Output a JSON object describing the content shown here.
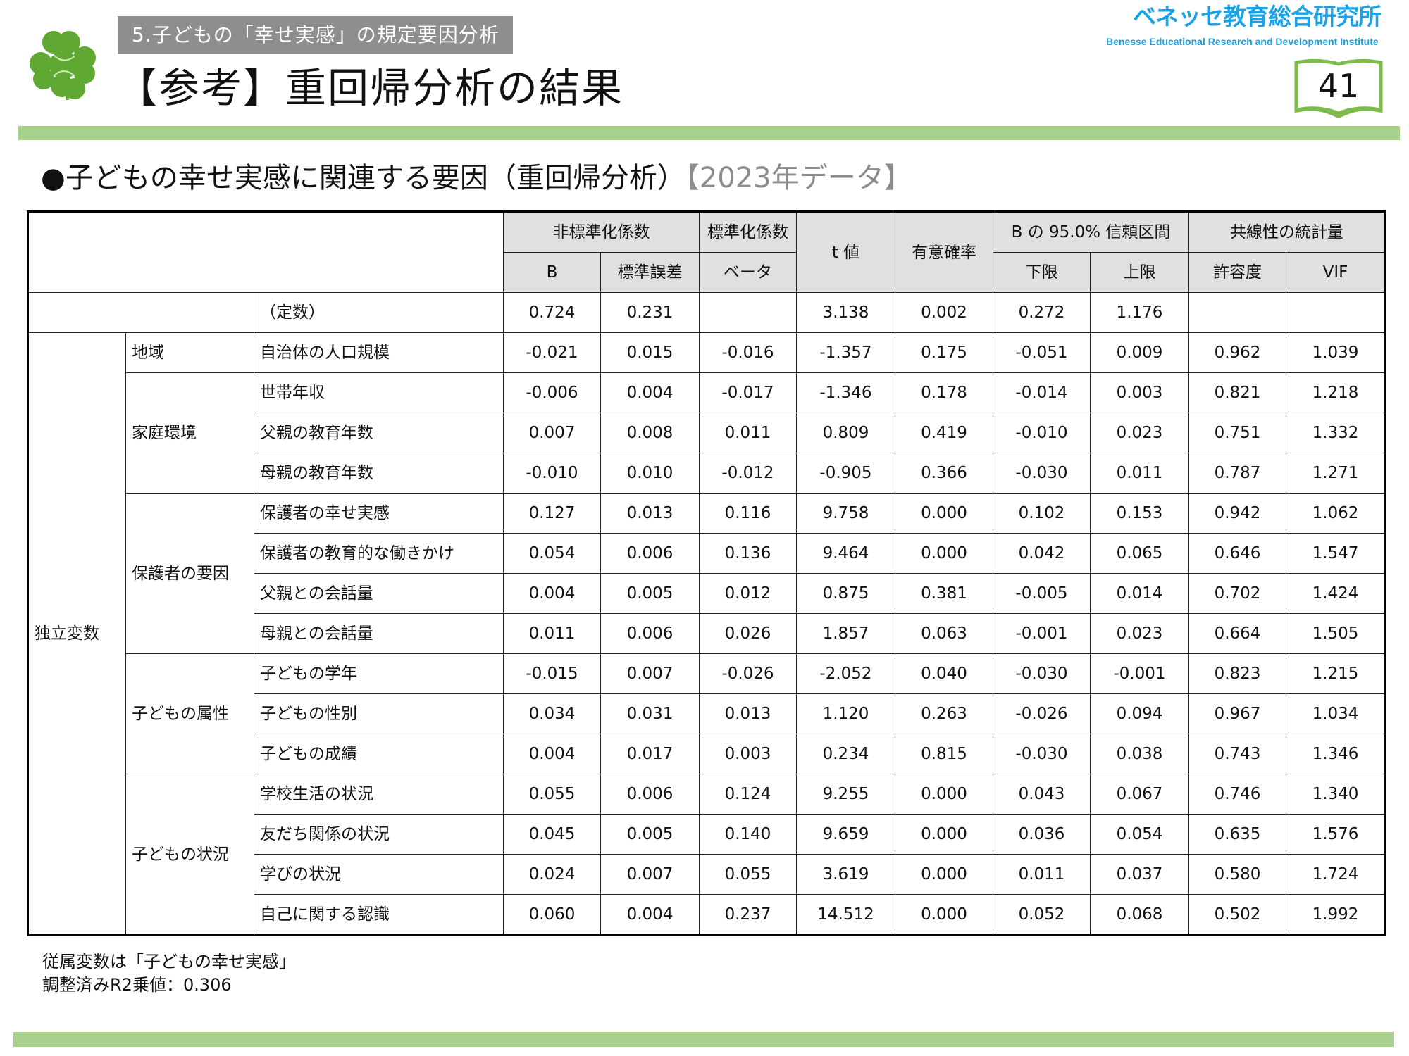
{
  "header": {
    "section_label": "5.子どもの「幸せ実感」の規定要因分析",
    "title": "【参考】重回帰分析の結果",
    "logo_jp": "ベネッセ教育総合研究所",
    "logo_en": "Benesse  Educational Research and Development Institute",
    "page_number": "41",
    "brand_color": "#1aa1e6",
    "accent_color": "#a9d18e"
  },
  "subtitle": {
    "main": "●子どもの幸せ実感に関連する要因（重回帰分析）",
    "tag": "【2023年データ】"
  },
  "table": {
    "header_groups": [
      "非標準化係数",
      "標準化係数",
      "t 値",
      "有意確率",
      "B の 95.0% 信頼区間",
      "共線性の統計量"
    ],
    "header_sub": [
      "B",
      "標準誤差",
      "ベータ",
      "下限",
      "上限",
      "許容度",
      "VIF"
    ],
    "constant": {
      "label": "（定数）",
      "values": [
        "0.724",
        "0.231",
        "",
        "3.138",
        "0.002",
        "0.272",
        "1.176",
        "",
        ""
      ]
    },
    "root_label": "独立変数",
    "groups": [
      {
        "name": "地域",
        "rows": [
          {
            "label": "自治体の人口規模",
            "values": [
              "-0.021",
              "0.015",
              "-0.016",
              "-1.357",
              "0.175",
              "-0.051",
              "0.009",
              "0.962",
              "1.039"
            ]
          }
        ]
      },
      {
        "name": "家庭環境",
        "rows": [
          {
            "label": "世帯年収",
            "values": [
              "-0.006",
              "0.004",
              "-0.017",
              "-1.346",
              "0.178",
              "-0.014",
              "0.003",
              "0.821",
              "1.218"
            ]
          },
          {
            "label": "父親の教育年数",
            "values": [
              "0.007",
              "0.008",
              "0.011",
              "0.809",
              "0.419",
              "-0.010",
              "0.023",
              "0.751",
              "1.332"
            ]
          },
          {
            "label": "母親の教育年数",
            "values": [
              "-0.010",
              "0.010",
              "-0.012",
              "-0.905",
              "0.366",
              "-0.030",
              "0.011",
              "0.787",
              "1.271"
            ]
          }
        ]
      },
      {
        "name": "保護者の要因",
        "rows": [
          {
            "label": "保護者の幸せ実感",
            "values": [
              "0.127",
              "0.013",
              "0.116",
              "9.758",
              "0.000",
              "0.102",
              "0.153",
              "0.942",
              "1.062"
            ]
          },
          {
            "label": "保護者の教育的な働きかけ",
            "values": [
              "0.054",
              "0.006",
              "0.136",
              "9.464",
              "0.000",
              "0.042",
              "0.065",
              "0.646",
              "1.547"
            ]
          },
          {
            "label": "父親との会話量",
            "values": [
              "0.004",
              "0.005",
              "0.012",
              "0.875",
              "0.381",
              "-0.005",
              "0.014",
              "0.702",
              "1.424"
            ]
          },
          {
            "label": "母親との会話量",
            "values": [
              "0.011",
              "0.006",
              "0.026",
              "1.857",
              "0.063",
              "-0.001",
              "0.023",
              "0.664",
              "1.505"
            ]
          }
        ]
      },
      {
        "name": "子どもの属性",
        "rows": [
          {
            "label": "子どもの学年",
            "values": [
              "-0.015",
              "0.007",
              "-0.026",
              "-2.052",
              "0.040",
              "-0.030",
              "-0.001",
              "0.823",
              "1.215"
            ]
          },
          {
            "label": "子どもの性別",
            "values": [
              "0.034",
              "0.031",
              "0.013",
              "1.120",
              "0.263",
              "-0.026",
              "0.094",
              "0.967",
              "1.034"
            ]
          },
          {
            "label": "子どもの成績",
            "values": [
              "0.004",
              "0.017",
              "0.003",
              "0.234",
              "0.815",
              "-0.030",
              "0.038",
              "0.743",
              "1.346"
            ]
          }
        ]
      },
      {
        "name": "子どもの状況",
        "rows": [
          {
            "label": "学校生活の状況",
            "values": [
              "0.055",
              "0.006",
              "0.124",
              "9.255",
              "0.000",
              "0.043",
              "0.067",
              "0.746",
              "1.340"
            ]
          },
          {
            "label": "友だち関係の状況",
            "values": [
              "0.045",
              "0.005",
              "0.140",
              "9.659",
              "0.000",
              "0.036",
              "0.054",
              "0.635",
              "1.576"
            ]
          },
          {
            "label": "学びの状況",
            "values": [
              "0.024",
              "0.007",
              "0.055",
              "3.619",
              "0.000",
              "0.011",
              "0.037",
              "0.580",
              "1.724"
            ]
          },
          {
            "label": "自己に関する認識",
            "values": [
              "0.060",
              "0.004",
              "0.237",
              "14.512",
              "0.000",
              "0.052",
              "0.068",
              "0.502",
              "1.992"
            ]
          }
        ]
      }
    ]
  },
  "notes": {
    "dependent": "従属変数は「子どもの幸せ実感」",
    "r2": "調整済みR2乗値：0.306"
  }
}
